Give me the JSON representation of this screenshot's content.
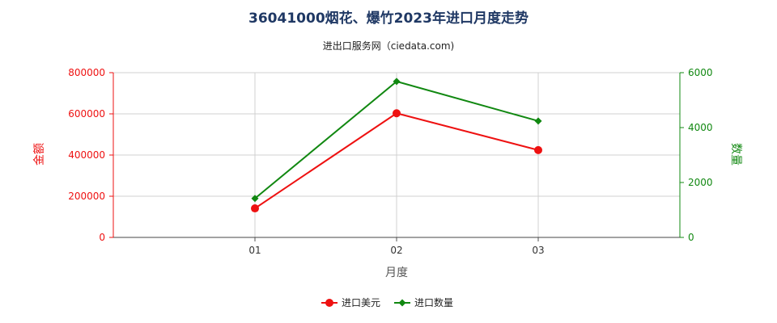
{
  "chart_data": {
    "type": "line",
    "title": "36041000烟花、爆竹2023年进口月度走势",
    "subtitle": "进出口服务网（ciedata.com)",
    "xlabel": "月度",
    "ylabel_left": "金额",
    "ylabel_right": "数量",
    "categories": [
      "01",
      "02",
      "03"
    ],
    "ylim_left": [
      0,
      800000
    ],
    "ylim_right": [
      0,
      6000
    ],
    "yticks_left": [
      "0",
      "200000",
      "400000",
      "600000",
      "800000"
    ],
    "yticks_right": [
      "0",
      "2000",
      "4000",
      "6000"
    ],
    "grid": true,
    "legend_position": "bottom",
    "series": [
      {
        "name": "进口美元",
        "axis": "left",
        "color": "#ee1111",
        "marker": "circle",
        "values": [
          141000,
          603000,
          424000
        ]
      },
      {
        "name": "进口数量",
        "axis": "right",
        "color": "#118811",
        "marker": "diamond",
        "values": [
          1420,
          5680,
          4240
        ]
      }
    ]
  }
}
